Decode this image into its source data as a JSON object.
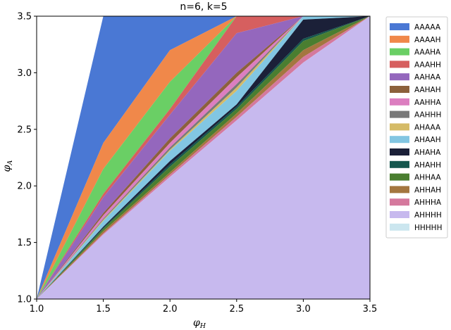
{
  "chart_data": {
    "type": "area",
    "title": "n=6, k=5",
    "xlabel": "φ",
    "xlabel_sub": "H",
    "ylabel": "φ",
    "ylabel_sub": "A",
    "xlim": [
      1.0,
      3.5
    ],
    "ylim": [
      1.0,
      3.5
    ],
    "xticks": [
      "1.0",
      "1.5",
      "2.0",
      "2.5",
      "3.0",
      "3.5"
    ],
    "yticks": [
      "1.0",
      "1.5",
      "2.0",
      "2.5",
      "3.0",
      "3.5"
    ],
    "grid": false,
    "legend_position": "right",
    "x": [
      1.0,
      1.5,
      2.0,
      2.5,
      3.0,
      3.5
    ],
    "series": [
      {
        "name": "AAAAA",
        "color": "#4a78d4",
        "upper": [
          1.0,
          3.5,
          3.5,
          3.5,
          3.5,
          3.5
        ]
      },
      {
        "name": "AAAAH",
        "color": "#f0884a",
        "upper": [
          1.0,
          2.38,
          3.2,
          3.5,
          3.5,
          3.5
        ]
      },
      {
        "name": "AAAHA",
        "color": "#6acf65",
        "upper": [
          1.0,
          2.15,
          2.92,
          3.5,
          3.5,
          3.5
        ]
      },
      {
        "name": "AAAHH",
        "color": "#d65f5f",
        "upper": [
          1.0,
          1.93,
          2.68,
          3.5,
          3.5,
          3.5
        ]
      },
      {
        "name": "AAHAA",
        "color": "#9467bd",
        "upper": [
          1.0,
          1.9,
          2.63,
          3.35,
          3.5,
          3.5
        ]
      },
      {
        "name": "AAHAH",
        "color": "#8c613c",
        "upper": [
          1.0,
          1.76,
          2.42,
          3.0,
          3.5,
          3.5
        ]
      },
      {
        "name": "AAHHA",
        "color": "#dc7ec0",
        "upper": [
          1.0,
          1.74,
          2.38,
          2.96,
          3.5,
          3.5
        ]
      },
      {
        "name": "AAHHH",
        "color": "#797979",
        "upper": [
          1.0,
          1.71,
          2.34,
          2.9,
          3.5,
          3.5
        ]
      },
      {
        "name": "AHAAA",
        "color": "#d5bb67",
        "upper": [
          1.0,
          1.7,
          2.32,
          2.87,
          3.5,
          3.5
        ]
      },
      {
        "name": "AHAAH",
        "color": "#82c6e2",
        "upper": [
          1.0,
          1.69,
          2.31,
          2.84,
          3.5,
          3.5
        ]
      },
      {
        "name": "AHAHA",
        "color": "#1b2038",
        "upper": [
          1.0,
          1.64,
          2.22,
          2.72,
          3.47,
          3.5
        ]
      },
      {
        "name": "AHAHH",
        "color": "#14574e",
        "upper": [
          1.0,
          1.63,
          2.19,
          2.7,
          3.3,
          3.5
        ]
      },
      {
        "name": "AHHAA",
        "color": "#4a7e30",
        "upper": [
          1.0,
          1.62,
          2.17,
          2.68,
          3.28,
          3.5
        ]
      },
      {
        "name": "AHHAH",
        "color": "#a4763f",
        "upper": [
          1.0,
          1.6,
          2.12,
          2.64,
          3.2,
          3.5
        ]
      },
      {
        "name": "AHHHA",
        "color": "#d5799d",
        "upper": [
          1.0,
          1.58,
          2.1,
          2.61,
          3.14,
          3.5
        ]
      },
      {
        "name": "AHHHH",
        "color": "#c7b9ee",
        "upper": [
          1.0,
          1.57,
          2.08,
          2.58,
          3.09,
          3.5
        ]
      },
      {
        "name": "HHHHH",
        "color": "#cbe6ef",
        "upper": [
          1.0,
          1.0,
          1.0,
          1.0,
          1.0,
          1.0
        ]
      }
    ]
  }
}
